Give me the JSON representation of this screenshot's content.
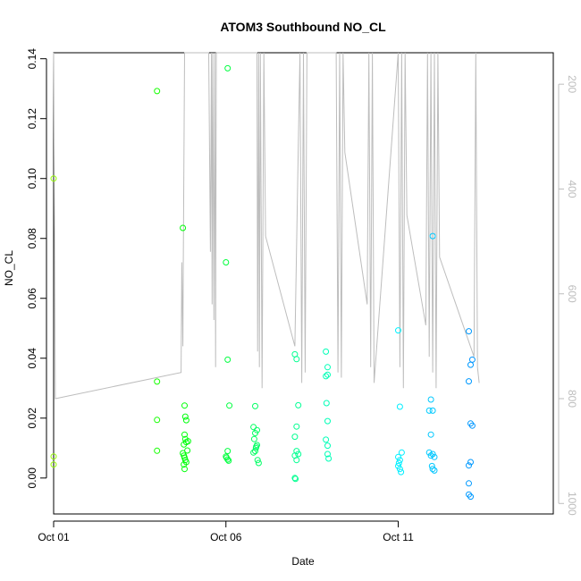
{
  "chart_data": {
    "type": "scatter",
    "title": "ATOM3 Southbound NO_CL",
    "xlabel": "Date",
    "ylabel": "NO_CL",
    "x_ticks": [
      "Oct 01",
      "Oct 06",
      "Oct 11"
    ],
    "y_ticks": [
      "0.00",
      "0.02",
      "0.04",
      "0.06",
      "0.08",
      "0.10",
      "0.12",
      "0.14"
    ],
    "y2_ticks": [
      "200",
      "400",
      "600",
      "800",
      "1000"
    ],
    "xlim": [
      0,
      14.5
    ],
    "ylim": [
      -0.012,
      0.142
    ],
    "y2lim_top_to_bottom": [
      140,
      1020
    ],
    "grid": false,
    "secondary_series": {
      "color": "#bdbdbd",
      "description_axis": "right",
      "points": [
        [
          0.0,
          140
        ],
        [
          0.05,
          800
        ],
        [
          3.7,
          750
        ],
        [
          3.72,
          540
        ],
        [
          3.75,
          700
        ],
        [
          3.76,
          560
        ],
        [
          3.8,
          140
        ],
        [
          4.5,
          140
        ],
        [
          4.55,
          520
        ],
        [
          4.58,
          140
        ],
        [
          4.6,
          620
        ],
        [
          4.62,
          140
        ],
        [
          4.65,
          650
        ],
        [
          4.68,
          140
        ],
        [
          4.7,
          740
        ],
        [
          4.72,
          140
        ],
        [
          5.9,
          140
        ],
        [
          5.92,
          710
        ],
        [
          5.95,
          140
        ],
        [
          5.97,
          740
        ],
        [
          6.0,
          140
        ],
        [
          6.05,
          780
        ],
        [
          6.1,
          140
        ],
        [
          6.15,
          490
        ],
        [
          7.0,
          700
        ],
        [
          7.1,
          320
        ],
        [
          7.15,
          140
        ],
        [
          7.2,
          770
        ],
        [
          7.25,
          140
        ],
        [
          7.3,
          750
        ],
        [
          7.35,
          140
        ],
        [
          8.2,
          140
        ],
        [
          8.25,
          750
        ],
        [
          8.3,
          140
        ],
        [
          8.35,
          760
        ],
        [
          8.4,
          140
        ],
        [
          8.45,
          330
        ],
        [
          9.1,
          620
        ],
        [
          9.15,
          140
        ],
        [
          9.2,
          740
        ],
        [
          9.25,
          140
        ],
        [
          9.3,
          770
        ],
        [
          10.0,
          140
        ],
        [
          10.05,
          740
        ],
        [
          10.1,
          140
        ],
        [
          10.15,
          780
        ],
        [
          10.2,
          140
        ],
        [
          10.25,
          450
        ],
        [
          10.8,
          660
        ],
        [
          10.85,
          140
        ],
        [
          10.9,
          720
        ],
        [
          10.95,
          140
        ],
        [
          11.0,
          750
        ],
        [
          11.05,
          140
        ],
        [
          11.1,
          780
        ],
        [
          11.15,
          140
        ],
        [
          11.2,
          530
        ],
        [
          12.2,
          720
        ],
        [
          12.25,
          140
        ],
        [
          12.3,
          740
        ],
        [
          12.35,
          770
        ]
      ]
    },
    "series": [
      {
        "color_scale": "green-to-blue by time",
        "points": [
          [
            0.0,
            0.1
          ],
          [
            0.0,
            0.0072
          ],
          [
            0.0,
            0.0045
          ],
          [
            3.0,
            0.1292
          ],
          [
            3.0,
            0.0322
          ],
          [
            3.0,
            0.0194
          ],
          [
            3.0,
            0.0091
          ],
          [
            3.75,
            0.0835
          ],
          [
            3.8,
            0.0242
          ],
          [
            3.82,
            0.0205
          ],
          [
            3.85,
            0.0193
          ],
          [
            3.78,
            0.0112
          ],
          [
            3.8,
            0.0145
          ],
          [
            3.82,
            0.013
          ],
          [
            3.85,
            0.012
          ],
          [
            3.75,
            0.0083
          ],
          [
            3.78,
            0.0075
          ],
          [
            3.8,
            0.0068
          ],
          [
            3.82,
            0.006
          ],
          [
            3.85,
            0.0053
          ],
          [
            3.78,
            0.0045
          ],
          [
            3.8,
            0.003
          ],
          [
            3.88,
            0.0092
          ],
          [
            3.9,
            0.0123
          ],
          [
            5.05,
            0.1368
          ],
          [
            5.0,
            0.072
          ],
          [
            5.05,
            0.0395
          ],
          [
            5.1,
            0.0242
          ],
          [
            5.05,
            0.009
          ],
          [
            5.0,
            0.0072
          ],
          [
            5.02,
            0.0068
          ],
          [
            5.05,
            0.0062
          ],
          [
            5.08,
            0.0058
          ],
          [
            5.85,
            0.024
          ],
          [
            5.8,
            0.017
          ],
          [
            5.85,
            0.015
          ],
          [
            5.9,
            0.016
          ],
          [
            5.82,
            0.013
          ],
          [
            5.88,
            0.0105
          ],
          [
            5.9,
            0.011
          ],
          [
            5.85,
            0.009
          ],
          [
            5.92,
            0.006
          ],
          [
            5.95,
            0.005
          ],
          [
            5.8,
            0.0085
          ],
          [
            5.87,
            0.01
          ],
          [
            7.0,
            0.0413
          ],
          [
            7.05,
            0.0397
          ],
          [
            7.1,
            0.0243
          ],
          [
            7.05,
            0.0172
          ],
          [
            7.0,
            0.0138
          ],
          [
            7.05,
            0.009
          ],
          [
            7.1,
            0.008
          ],
          [
            7.0,
            0.0075
          ],
          [
            7.05,
            0.006
          ],
          [
            7.0,
            0.0
          ],
          [
            7.02,
            -0.0003
          ],
          [
            7.9,
            0.0422
          ],
          [
            7.95,
            0.037
          ],
          [
            7.9,
            0.034
          ],
          [
            7.95,
            0.0345
          ],
          [
            7.92,
            0.025
          ],
          [
            7.95,
            0.019
          ],
          [
            7.9,
            0.0128
          ],
          [
            7.95,
            0.0108
          ],
          [
            7.95,
            0.008
          ],
          [
            7.98,
            0.0065
          ],
          [
            10.0,
            0.0493
          ],
          [
            10.05,
            0.0238
          ],
          [
            10.1,
            0.0085
          ],
          [
            10.0,
            0.007
          ],
          [
            10.05,
            0.006
          ],
          [
            10.02,
            0.005
          ],
          [
            10.0,
            0.004
          ],
          [
            10.05,
            0.003
          ],
          [
            10.08,
            0.002
          ],
          [
            11.0,
            0.0808
          ],
          [
            10.95,
            0.0262
          ],
          [
            10.9,
            0.0225
          ],
          [
            11.0,
            0.0225
          ],
          [
            10.95,
            0.0145
          ],
          [
            10.9,
            0.0085
          ],
          [
            11.0,
            0.008
          ],
          [
            10.95,
            0.0075
          ],
          [
            11.05,
            0.007
          ],
          [
            10.98,
            0.004
          ],
          [
            11.0,
            0.003
          ],
          [
            11.05,
            0.0025
          ],
          [
            12.05,
            0.049
          ],
          [
            12.1,
            0.0378
          ],
          [
            12.15,
            0.0395
          ],
          [
            12.05,
            0.0323
          ],
          [
            12.1,
            0.0182
          ],
          [
            12.15,
            0.0175
          ],
          [
            12.1,
            0.0053
          ],
          [
            12.05,
            0.0042
          ],
          [
            12.05,
            -0.0018
          ],
          [
            12.05,
            -0.0055
          ],
          [
            12.1,
            -0.0062
          ]
        ]
      }
    ]
  }
}
